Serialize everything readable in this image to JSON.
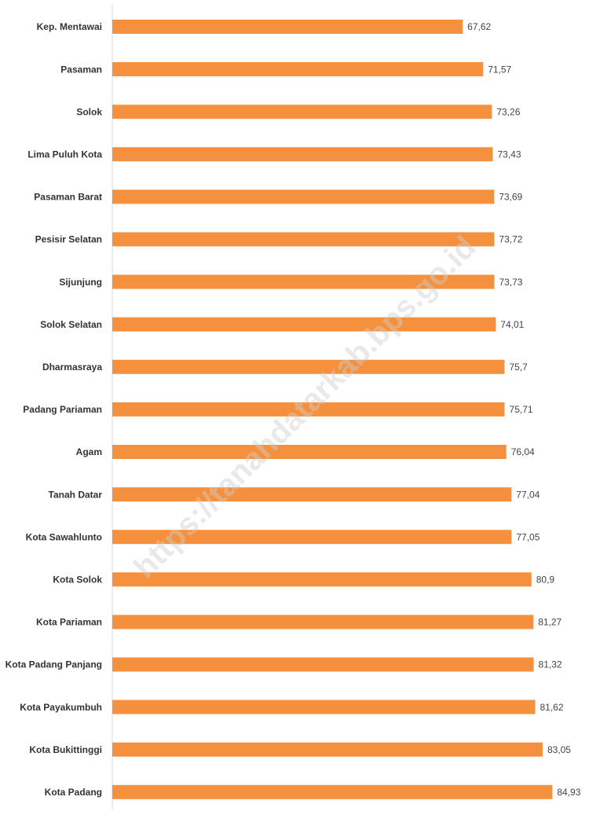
{
  "chart_data": {
    "type": "bar",
    "orientation": "horizontal",
    "categories": [
      "Kep. Mentawai",
      "Pasaman",
      "Solok",
      "Lima Puluh Kota",
      "Pasaman Barat",
      "Pesisir Selatan",
      "Sijunjung",
      "Solok Selatan",
      "Dharmasraya",
      "Padang Pariaman",
      "Agam",
      "Tanah Datar",
      "Kota Sawahlunto",
      "Kota Solok",
      "Kota Pariaman",
      "Kota Padang Panjang",
      "Kota Payakumbuh",
      "Kota Bukittinggi",
      "Kota Padang"
    ],
    "values": [
      67.62,
      71.57,
      73.26,
      73.43,
      73.69,
      73.72,
      73.73,
      74.01,
      75.7,
      75.71,
      76.04,
      77.04,
      77.05,
      80.9,
      81.27,
      81.32,
      81.62,
      83.05,
      84.93
    ],
    "value_labels": [
      "67,62",
      "71,57",
      "73,26",
      "73,43",
      "73,69",
      "73,72",
      "73,73",
      "74,01",
      "75,7",
      "75,71",
      "76,04",
      "77,04",
      "77,05",
      "80,9",
      "81,27",
      "81,32",
      "81,62",
      "83,05",
      "84,93"
    ],
    "color": "#f5913e",
    "xlim": [
      0,
      92
    ],
    "watermark": "https://tanahdatarkab.bps.go.id"
  }
}
